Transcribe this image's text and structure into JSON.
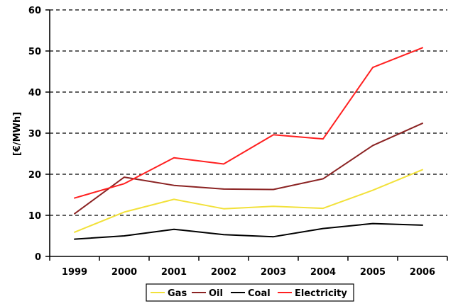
{
  "chart_data": {
    "type": "line",
    "title": "",
    "xlabel": "",
    "ylabel": "[€/MWh]",
    "categories": [
      "1999",
      "2000",
      "2001",
      "2002",
      "2003",
      "2004",
      "2005",
      "2006"
    ],
    "ylim": [
      0,
      60
    ],
    "yticks": [
      "0",
      "10",
      "20",
      "30",
      "40",
      "50",
      "60"
    ],
    "grid": "horizontal dashed",
    "legend_position": "bottom",
    "series": [
      {
        "name": "Gas",
        "color": "#f2e13a",
        "values": [
          5.9,
          10.8,
          13.9,
          11.6,
          12.2,
          11.7,
          16.1,
          21.1
        ]
      },
      {
        "name": "Oil",
        "color": "#8b2323",
        "values": [
          10.4,
          19.3,
          17.3,
          16.4,
          16.3,
          18.9,
          27.0,
          32.4
        ]
      },
      {
        "name": "Coal",
        "color": "#000000",
        "values": [
          4.2,
          5.0,
          6.6,
          5.3,
          4.8,
          6.8,
          8.0,
          7.6
        ]
      },
      {
        "name": "Electricity",
        "color": "#ff2020",
        "values": [
          14.2,
          17.7,
          24.0,
          22.5,
          29.6,
          28.6,
          46.0,
          50.8
        ]
      }
    ]
  }
}
